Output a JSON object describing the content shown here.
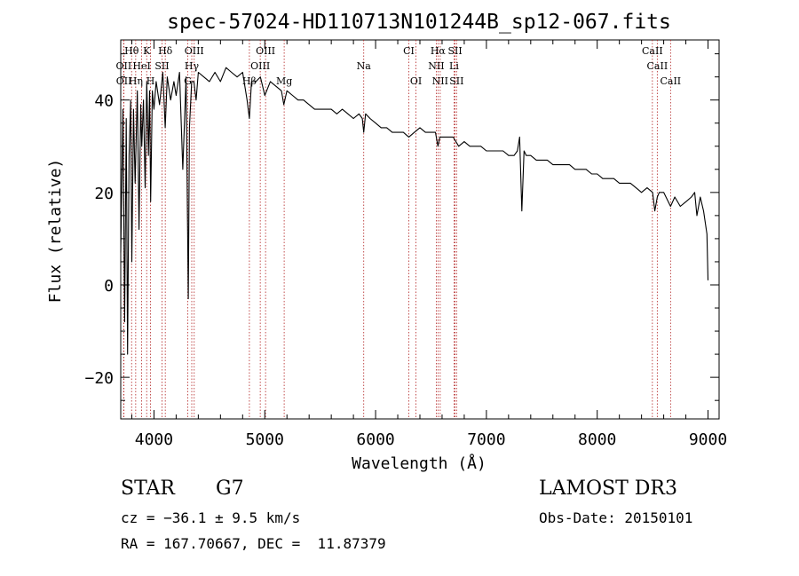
{
  "chart_data": {
    "type": "line",
    "title": "spec-57024-HD110713N101244B_sp12-067.fits",
    "xlabel": "Wavelength (Å)",
    "ylabel": "Flux (relative)",
    "xlim": [
      3700,
      9100
    ],
    "ylim": [
      -29,
      53
    ],
    "x_ticks": [
      4000,
      5000,
      6000,
      7000,
      8000,
      9000
    ],
    "x_tick_labels": [
      "4000",
      "5000",
      "6000",
      "7000",
      "8000",
      "9000"
    ],
    "y_ticks": [
      -20,
      0,
      20,
      40
    ],
    "y_tick_labels": [
      "−20",
      "0",
      "20",
      "40"
    ],
    "grid": false,
    "series": [
      {
        "name": "flux",
        "x": [
          3700,
          3720,
          3735,
          3750,
          3762,
          3775,
          3790,
          3800,
          3815,
          3830,
          3850,
          3865,
          3880,
          3890,
          3905,
          3920,
          3935,
          3950,
          3960,
          3970,
          3985,
          4000,
          4020,
          4050,
          4080,
          4101,
          4120,
          4150,
          4180,
          4200,
          4230,
          4260,
          4290,
          4310,
          4320,
          4340,
          4360,
          4380,
          4400,
          4450,
          4500,
          4550,
          4600,
          4650,
          4700,
          4750,
          4800,
          4840,
          4861,
          4880,
          4920,
          4960,
          5000,
          5050,
          5100,
          5150,
          5172,
          5200,
          5250,
          5300,
          5350,
          5400,
          5450,
          5500,
          5550,
          5600,
          5650,
          5700,
          5750,
          5800,
          5850,
          5880,
          5893,
          5910,
          5950,
          6000,
          6050,
          6100,
          6150,
          6200,
          6250,
          6300,
          6350,
          6400,
          6450,
          6500,
          6540,
          6563,
          6580,
          6600,
          6650,
          6700,
          6750,
          6800,
          6850,
          6900,
          6950,
          7000,
          7050,
          7100,
          7150,
          7200,
          7250,
          7280,
          7300,
          7320,
          7340,
          7360,
          7400,
          7450,
          7500,
          7550,
          7600,
          7650,
          7700,
          7750,
          7800,
          7850,
          7900,
          7950,
          8000,
          8050,
          8100,
          8150,
          8200,
          8250,
          8300,
          8350,
          8400,
          8450,
          8500,
          8520,
          8542,
          8560,
          8600,
          8662,
          8700,
          8750,
          8800,
          8850,
          8880,
          8900,
          8930,
          8960,
          8990,
          9000
        ],
        "y": [
          7,
          38,
          -8,
          36,
          -15,
          28,
          40,
          5,
          38,
          22,
          42,
          12,
          39,
          30,
          40,
          21,
          44,
          28,
          42,
          18,
          42,
          38,
          44,
          39,
          46,
          34,
          45,
          40,
          44,
          41,
          46,
          25,
          45,
          -3,
          34,
          44,
          44,
          40,
          46,
          45,
          44,
          46,
          44,
          47,
          46,
          45,
          46,
          40,
          36,
          44,
          44,
          45,
          41,
          44,
          43,
          42,
          39,
          42,
          41,
          40,
          40,
          39,
          38,
          38,
          38,
          38,
          37,
          38,
          37,
          36,
          37,
          36,
          33,
          37,
          36,
          35,
          34,
          34,
          33,
          33,
          33,
          32,
          33,
          34,
          33,
          33,
          33,
          30,
          32,
          32,
          32,
          32,
          30,
          31,
          30,
          30,
          30,
          29,
          29,
          29,
          29,
          28,
          28,
          29,
          32,
          16,
          29,
          28,
          28,
          27,
          27,
          27,
          26,
          26,
          26,
          26,
          25,
          25,
          25,
          24,
          24,
          23,
          23,
          23,
          22,
          22,
          22,
          21,
          20,
          21,
          20,
          16,
          19,
          20,
          20,
          17,
          19,
          17,
          18,
          19,
          20,
          15,
          19,
          16,
          11,
          1
        ]
      }
    ],
    "line_list": [
      {
        "label": "Hθ",
        "wave": 3798,
        "row": 1
      },
      {
        "label": "K",
        "wave": 3934,
        "row": 1
      },
      {
        "label": "Hδ",
        "wave": 4102,
        "row": 1
      },
      {
        "label": "OIII",
        "wave": 4363,
        "row": 1
      },
      {
        "label": "OIII",
        "wave": 5007,
        "row": 1
      },
      {
        "label": "CI",
        "wave": 6300,
        "row": 1
      },
      {
        "label": "Hα",
        "wave": 6563,
        "row": 1
      },
      {
        "label": "SII",
        "wave": 6717,
        "row": 1
      },
      {
        "label": "CaII",
        "wave": 8498,
        "row": 1
      },
      {
        "label": "OII",
        "wave": 3727,
        "row": 2
      },
      {
        "label": "HeI",
        "wave": 3889,
        "row": 2
      },
      {
        "label": "SII",
        "wave": 4072,
        "row": 2
      },
      {
        "label": "Hγ",
        "wave": 4341,
        "row": 2
      },
      {
        "label": "OIII",
        "wave": 4959,
        "row": 2
      },
      {
        "label": "Na",
        "wave": 5893,
        "row": 2
      },
      {
        "label": "NII",
        "wave": 6548,
        "row": 2
      },
      {
        "label": "Li",
        "wave": 6708,
        "row": 2
      },
      {
        "label": "CaII",
        "wave": 8542,
        "row": 2
      },
      {
        "label": "OII",
        "wave": 3729,
        "row": 3
      },
      {
        "label": "Hη",
        "wave": 3835,
        "row": 3
      },
      {
        "label": "H",
        "wave": 3969,
        "row": 3
      },
      {
        "label": "G",
        "wave": 4305,
        "row": 3
      },
      {
        "label": "Hβ",
        "wave": 4861,
        "row": 3
      },
      {
        "label": "Mg",
        "wave": 5175,
        "row": 3
      },
      {
        "label": "OI",
        "wave": 6364,
        "row": 3
      },
      {
        "label": "NII",
        "wave": 6583,
        "row": 3
      },
      {
        "label": "SII",
        "wave": 6731,
        "row": 3
      },
      {
        "label": "CaII",
        "wave": 8662,
        "row": 3
      }
    ]
  },
  "info": {
    "obj_class": "STAR",
    "subclass": "G7",
    "survey": "LAMOST DR3",
    "redshift_line": "cz = −36.1 ± 9.5 km/s",
    "obsdate_line": "Obs-Date: 20150101",
    "coord_line": "RA = 167.70667, DEC =  11.87379"
  }
}
